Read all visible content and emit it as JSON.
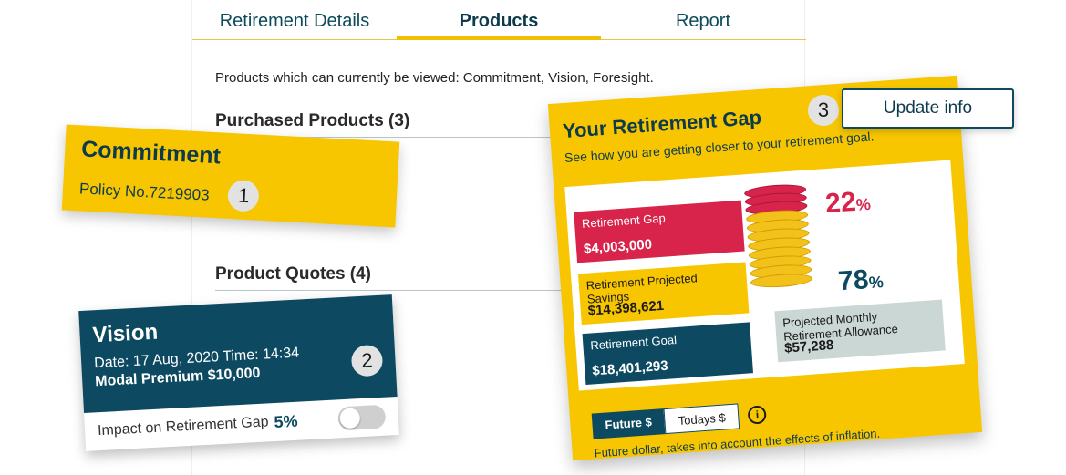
{
  "tabs": [
    {
      "label": "Retirement Details"
    },
    {
      "label": "Products"
    },
    {
      "label": "Report"
    }
  ],
  "intro": "Products which can currently be viewed: Commitment, Vision, Foresight.",
  "purchased_title": "Purchased Products (3)",
  "quotes_title": "Product Quotes (4)",
  "commitment": {
    "name": "Commitment",
    "policy": "Policy No.7219903",
    "badge": "1"
  },
  "vision": {
    "name": "Vision",
    "date": "Date: 17 Aug, 2020  Time: 14:34",
    "premium": "Modal Premium $10,000",
    "badge": "2",
    "impact_label": "Impact on Retirement Gap",
    "impact_value": "5%",
    "toggle_on": false
  },
  "gap": {
    "title": "Your Retirement Gap",
    "subtitle": "See how you are getting closer to your retirement goal.",
    "gap_label": "Retirement Gap",
    "gap_value": "$4,003,000",
    "savings_label": "Retirement Projected Savings",
    "savings_value": "$14,398,621",
    "goal_label": "Retirement Goal",
    "goal_value": "$18,401,293",
    "allowance_label": "Projected Monthly Retirement Allowance",
    "allowance_value": "$57,288",
    "gap_pct": "22",
    "savings_pct": "78",
    "pct_sign": "%",
    "future_label": "Future $",
    "today_label": "Todays $",
    "info_glyph": "i",
    "note": "Future dollar, takes into account the effects of inflation.",
    "colors": {
      "gap": "#d8244a",
      "savings": "#f7c600",
      "goal": "#0d4a62",
      "allowance": "#cbd7d4"
    }
  },
  "update": {
    "badge": "3",
    "label": "Update info"
  }
}
